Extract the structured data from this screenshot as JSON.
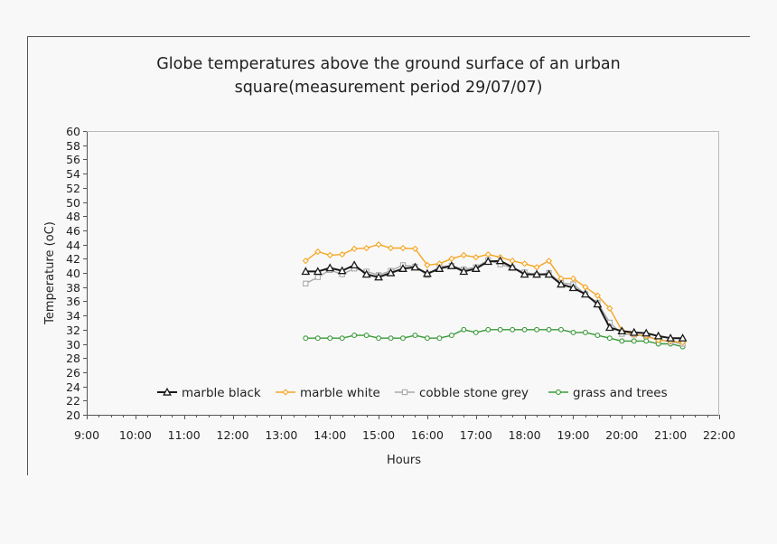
{
  "chart_data": {
    "type": "line",
    "title_lines": [
      "Globe temperatures above the ground surface of an urban",
      "square(measurement period 29/07/07)"
    ],
    "xlabel": "Hours",
    "ylabel": "Temperature (oC)",
    "x_ticks": [
      "9:00",
      "10:00",
      "11:00",
      "12:00",
      "13:00",
      "14:00",
      "15:00",
      "16:00",
      "17:00",
      "18:00",
      "19:00",
      "20:00",
      "21:00",
      "22:00"
    ],
    "xlim": [
      9,
      22
    ],
    "ylim": [
      20,
      60
    ],
    "y_step": 2,
    "grid": false,
    "legend_position": "bottom-inside",
    "x": [
      13.5,
      13.75,
      14.0,
      14.25,
      14.5,
      14.75,
      15.0,
      15.25,
      15.5,
      15.75,
      16.0,
      16.25,
      16.5,
      16.75,
      17.0,
      17.25,
      17.5,
      17.75,
      18.0,
      18.25,
      18.5,
      18.75,
      19.0,
      19.25,
      19.5,
      19.75,
      20.0,
      20.25,
      20.5,
      20.75,
      21.0,
      21.25
    ],
    "series": [
      {
        "name": "marble black",
        "color": "#1a1a1a",
        "marker": "triangle",
        "values": [
          40.2,
          40.2,
          40.7,
          40.3,
          41.1,
          39.8,
          39.4,
          40.0,
          40.6,
          40.8,
          39.9,
          40.6,
          41.0,
          40.2,
          40.6,
          41.6,
          41.7,
          40.8,
          39.8,
          39.8,
          39.8,
          38.4,
          37.9,
          37.0,
          35.6,
          32.3,
          31.8,
          31.6,
          31.5,
          31.1,
          30.8,
          30.8
        ]
      },
      {
        "name": "marble white",
        "color": "#f5a623",
        "marker": "diamond",
        "values": [
          41.7,
          43.0,
          42.5,
          42.6,
          43.4,
          43.5,
          44.0,
          43.5,
          43.5,
          43.4,
          41.1,
          41.3,
          42.0,
          42.5,
          42.2,
          42.6,
          42.2,
          41.7,
          41.3,
          40.8,
          41.7,
          39.2,
          39.2,
          38.0,
          36.8,
          35.0,
          31.9,
          31.3,
          31.1,
          30.5,
          30.4,
          30.2
        ]
      },
      {
        "name": "cobble stone grey",
        "color": "#a9a9a9",
        "marker": "square",
        "values": [
          38.5,
          39.4,
          40.4,
          39.8,
          40.6,
          40.2,
          39.7,
          40.3,
          41.1,
          40.9,
          39.7,
          40.9,
          41.0,
          40.5,
          40.8,
          41.8,
          41.2,
          40.7,
          40.1,
          39.7,
          40.0,
          38.6,
          38.4,
          37.0,
          35.8,
          33.0,
          31.4,
          31.3,
          31.1,
          30.6,
          30.3,
          30.0
        ]
      },
      {
        "name": "grass and trees",
        "color": "#3a9a3a",
        "marker": "circle",
        "values": [
          30.8,
          30.8,
          30.8,
          30.8,
          31.2,
          31.2,
          30.8,
          30.8,
          30.8,
          31.2,
          30.8,
          30.8,
          31.2,
          32.0,
          31.6,
          32.0,
          32.0,
          32.0,
          32.0,
          32.0,
          32.0,
          32.0,
          31.6,
          31.6,
          31.2,
          30.8,
          30.4,
          30.4,
          30.4,
          30.0,
          30.0,
          29.6
        ]
      }
    ]
  }
}
